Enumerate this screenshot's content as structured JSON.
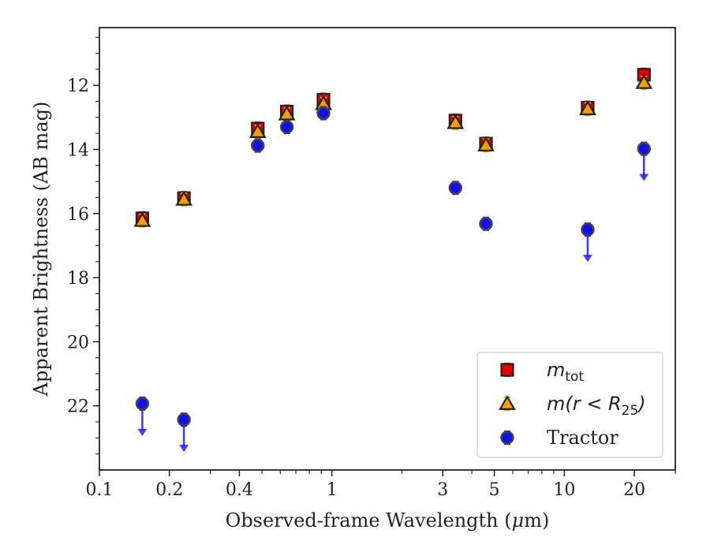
{
  "chart_data": {
    "type": "scatter",
    "xlabel_pre": "Observed-frame Wavelength (",
    "xlabel_mu": "μ",
    "xlabel_post": "m)",
    "ylabel": "Apparent Brightness (AB mag)",
    "xscale": "log",
    "xlim": [
      0.1,
      30
    ],
    "ylim": [
      24.0,
      10.2
    ],
    "y_inverted": true,
    "xticks": [
      {
        "value": 0.1,
        "label": "0.1"
      },
      {
        "value": 0.2,
        "label": "0.2"
      },
      {
        "value": 0.4,
        "label": "0.4"
      },
      {
        "value": 1,
        "label": "1"
      },
      {
        "value": 3,
        "label": "3"
      },
      {
        "value": 5,
        "label": "5"
      },
      {
        "value": 10,
        "label": "10"
      },
      {
        "value": 20,
        "label": "20"
      }
    ],
    "yticks": [
      {
        "value": 12,
        "label": "12"
      },
      {
        "value": 14,
        "label": "14"
      },
      {
        "value": 16,
        "label": "16"
      },
      {
        "value": 18,
        "label": "18"
      },
      {
        "value": 20,
        "label": "20"
      },
      {
        "value": 22,
        "label": "22"
      }
    ],
    "legend": {
      "placement": "lower-right",
      "entries": [
        {
          "series": "mtot",
          "label_main": "m",
          "label_sub": "tot"
        },
        {
          "series": "m_r25",
          "label_main": "m(r < R",
          "label_sub": "25",
          "label_tail": ")"
        },
        {
          "series": "tractor",
          "label_main": "Tractor"
        }
      ]
    },
    "series": [
      {
        "key": "mtot",
        "marker": "square",
        "color": "#e60000",
        "errcolor": "#e60000",
        "x": [
          0.153,
          0.231,
          0.48,
          0.64,
          0.92,
          3.4,
          4.6,
          12.6,
          22.0
        ],
        "y": [
          16.15,
          15.52,
          13.35,
          12.82,
          12.45,
          13.1,
          13.82,
          12.7,
          11.67
        ]
      },
      {
        "key": "m_r25",
        "marker": "triangle",
        "color": "#f5a000",
        "errcolor": "#f5a000",
        "x": [
          0.153,
          0.231,
          0.48,
          0.64,
          0.92,
          3.4,
          4.6,
          12.6,
          22.0
        ],
        "y": [
          16.22,
          15.56,
          13.45,
          12.9,
          12.58,
          13.17,
          13.87,
          12.74,
          11.92
        ]
      },
      {
        "key": "tractor",
        "marker": "circle",
        "color": "#1010ee",
        "errcolor": "#1010ee",
        "x": [
          0.153,
          0.231,
          0.48,
          0.64,
          0.92,
          3.4,
          4.6,
          12.6,
          22.0
        ],
        "y": [
          21.93,
          22.43,
          13.88,
          13.3,
          12.87,
          15.2,
          16.32,
          16.5,
          13.98
        ],
        "upper_limits": [
          true,
          true,
          false,
          false,
          false,
          false,
          false,
          true,
          true
        ]
      }
    ]
  }
}
